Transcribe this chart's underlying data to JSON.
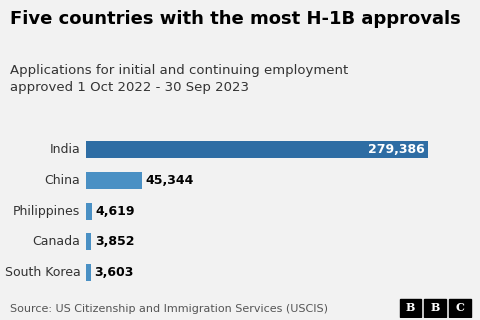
{
  "title": "Five countries with the most H-1B approvals",
  "subtitle": "Applications for initial and continuing employment\napproved 1 Oct 2022 - 30 Sep 2023",
  "source": "Source: US Citizenship and Immigration Services (USCIS)",
  "categories": [
    "India",
    "China",
    "Philippines",
    "Canada",
    "South Korea"
  ],
  "values": [
    279386,
    45344,
    4619,
    3852,
    3603
  ],
  "labels": [
    "279,386",
    "45,344",
    "4,619",
    "3,852",
    "3,603"
  ],
  "bar_color_india": "#2e6da4",
  "bar_color_others": "#4a90c4",
  "background_color": "#f2f2f2",
  "title_fontsize": 13,
  "subtitle_fontsize": 9.5,
  "label_fontsize": 9,
  "source_fontsize": 8,
  "bbc_letters": [
    "B",
    "B",
    "C"
  ]
}
